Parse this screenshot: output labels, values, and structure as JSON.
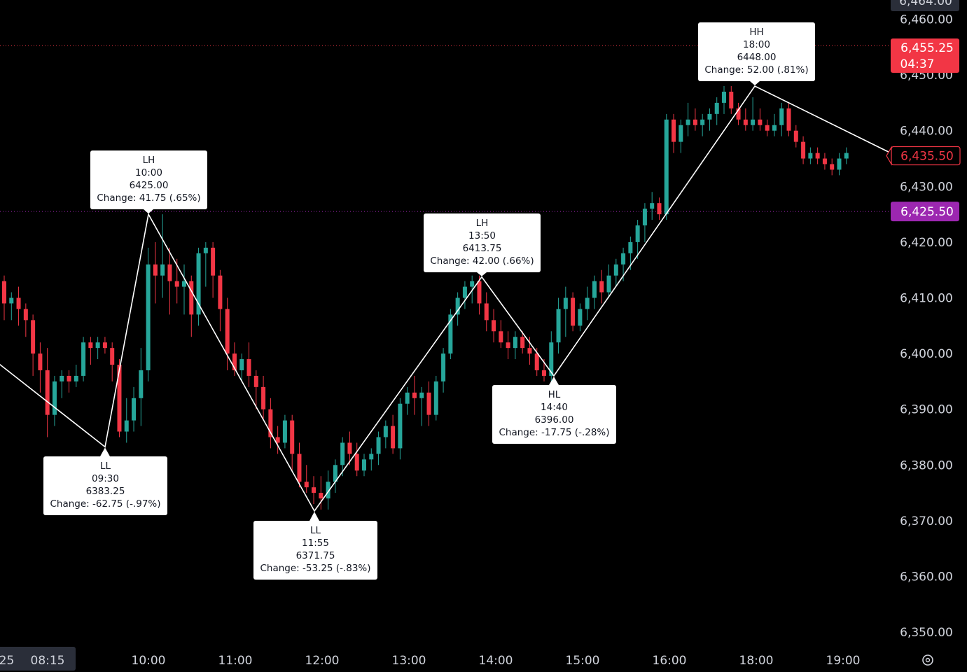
{
  "chart_data": {
    "type": "candlestick",
    "price_axis": {
      "ticks": [
        {
          "value": 6460,
          "label": "6,460.00"
        },
        {
          "value": 6450,
          "label": "6,450.00"
        },
        {
          "value": 6440,
          "label": "6,440.00"
        },
        {
          "value": 6430,
          "label": "6,430.00"
        },
        {
          "value": 6420,
          "label": "6,420.00"
        },
        {
          "value": 6410,
          "label": "6,410.00"
        },
        {
          "value": 6400,
          "label": "6,400.00"
        },
        {
          "value": 6390,
          "label": "6,390.00"
        },
        {
          "value": 6380,
          "label": "6,380.00"
        },
        {
          "value": 6370,
          "label": "6,370.00"
        },
        {
          "value": 6360,
          "label": "6,360.00"
        },
        {
          "value": 6350,
          "label": "6,350.00"
        }
      ],
      "partial_top_label": "6,464.00",
      "range": [
        6346,
        6464
      ]
    },
    "time_axis": {
      "current_label_prefix": "'25",
      "current_label": "08:15",
      "ticks": [
        "10:00",
        "11:00",
        "12:00",
        "13:00",
        "14:00",
        "15:00",
        "16:00",
        "18:00",
        "19:00"
      ]
    },
    "badges": {
      "last_price": {
        "value": 6455.25,
        "label": "6,455.25",
        "countdown": "04:37",
        "color": "#f23645"
      },
      "current_close": {
        "value": 6435.5,
        "label": "6,435.50",
        "color": "#f23645"
      },
      "level": {
        "value": 6425.5,
        "label": "6,425.50",
        "color": "#9c27b0"
      }
    },
    "colors": {
      "up": "#26a69a",
      "down": "#f23645",
      "zigzag": "#ffffff",
      "background": "#000000"
    },
    "swing_points": [
      {
        "type": "LL",
        "time": "09:30",
        "price": "6383.25",
        "change": "Change: -62.75 (-.97%)",
        "value": 6383.25
      },
      {
        "type": "LH",
        "time": "10:00",
        "price": "6425.00",
        "change": "Change: 41.75 (.65%)",
        "value": 6425.0
      },
      {
        "type": "LL",
        "time": "11:55",
        "price": "6371.75",
        "change": "Change: -53.25 (-.83%)",
        "value": 6371.75
      },
      {
        "type": "LH",
        "time": "13:50",
        "price": "6413.75",
        "change": "Change: 42.00 (.66%)",
        "value": 6413.75
      },
      {
        "type": "HL",
        "time": "14:40",
        "price": "6396.00",
        "change": "Change: -17.75 (-.28%)",
        "value": 6396.0
      },
      {
        "type": "HH",
        "time": "18:00",
        "price": "6448.00",
        "change": "Change: 52.00 (.81%)",
        "value": 6448.0
      }
    ],
    "candles": [
      [
        6413,
        6414,
        6406,
        6409
      ],
      [
        6409,
        6411,
        6406,
        6410
      ],
      [
        6410,
        6412,
        6405,
        6408
      ],
      [
        6408,
        6409,
        6403,
        6406
      ],
      [
        6406,
        6407,
        6396,
        6400
      ],
      [
        6400,
        6402,
        6393,
        6397
      ],
      [
        6397,
        6401,
        6385,
        6389
      ],
      [
        6389,
        6396,
        6387,
        6395
      ],
      [
        6395,
        6397,
        6392,
        6396
      ],
      [
        6396,
        6397,
        6393,
        6395
      ],
      [
        6395,
        6398,
        6394,
        6396
      ],
      [
        6396,
        6403,
        6395,
        6402
      ],
      [
        6402,
        6403,
        6398,
        6401
      ],
      [
        6401,
        6403,
        6399,
        6402
      ],
      [
        6402,
        6403,
        6400,
        6401
      ],
      [
        6401,
        6402,
        6395,
        6398
      ],
      [
        6398,
        6399,
        6385,
        6386
      ],
      [
        6386,
        6392,
        6384,
        6388
      ],
      [
        6388,
        6394,
        6386,
        6392
      ],
      [
        6392,
        6401,
        6387,
        6397
      ],
      [
        6397,
        6419,
        6395,
        6416
      ],
      [
        6416,
        6420,
        6409,
        6414
      ],
      [
        6414,
        6425,
        6410,
        6416
      ],
      [
        6416,
        6419,
        6407,
        6413
      ],
      [
        6413,
        6417,
        6409,
        6412
      ],
      [
        6412,
        6416,
        6407,
        6413
      ],
      [
        6413,
        6414,
        6403,
        6407
      ],
      [
        6407,
        6419,
        6405,
        6418
      ],
      [
        6418,
        6420,
        6412,
        6419
      ],
      [
        6419,
        6420,
        6410,
        6414
      ],
      [
        6414,
        6415,
        6404,
        6408
      ],
      [
        6408,
        6410,
        6397,
        6400
      ],
      [
        6400,
        6402,
        6396,
        6397
      ],
      [
        6397,
        6400,
        6395,
        6399
      ],
      [
        6399,
        6402,
        6394,
        6396
      ],
      [
        6396,
        6397,
        6390,
        6394
      ],
      [
        6394,
        6396,
        6388,
        6390
      ],
      [
        6390,
        6392,
        6383,
        6385
      ],
      [
        6385,
        6387,
        6382,
        6384
      ],
      [
        6384,
        6389,
        6383,
        6388
      ],
      [
        6388,
        6389,
        6379,
        6382
      ],
      [
        6382,
        6384,
        6376,
        6377
      ],
      [
        6377,
        6380,
        6375,
        6376
      ],
      [
        6376,
        6378,
        6373,
        6375
      ],
      [
        6375,
        6378,
        6372,
        6374
      ],
      [
        6374,
        6379,
        6372,
        6377
      ],
      [
        6377,
        6381,
        6375,
        6380
      ],
      [
        6380,
        6385,
        6378,
        6384
      ],
      [
        6384,
        6386,
        6380,
        6382
      ],
      [
        6382,
        6384,
        6378,
        6379
      ],
      [
        6379,
        6382,
        6378,
        6381
      ],
      [
        6381,
        6383,
        6379,
        6382
      ],
      [
        6382,
        6386,
        6380,
        6385
      ],
      [
        6385,
        6388,
        6383,
        6387
      ],
      [
        6387,
        6389,
        6382,
        6383
      ],
      [
        6383,
        6392,
        6381,
        6391
      ],
      [
        6391,
        6394,
        6389,
        6393
      ],
      [
        6393,
        6396,
        6389,
        6392
      ],
      [
        6392,
        6394,
        6387,
        6393
      ],
      [
        6393,
        6395,
        6387,
        6389
      ],
      [
        6389,
        6396,
        6388,
        6395
      ],
      [
        6395,
        6401,
        6393,
        6400
      ],
      [
        6400,
        6408,
        6399,
        6407
      ],
      [
        6407,
        6411,
        6405,
        6410
      ],
      [
        6410,
        6413,
        6408,
        6412
      ],
      [
        6412,
        6414,
        6409,
        6413
      ],
      [
        6413,
        6414,
        6407,
        6409
      ],
      [
        6409,
        6411,
        6404,
        6406
      ],
      [
        6406,
        6408,
        6402,
        6404
      ],
      [
        6404,
        6406,
        6401,
        6402
      ],
      [
        6402,
        6404,
        6399,
        6401
      ],
      [
        6401,
        6404,
        6399,
        6403
      ],
      [
        6403,
        6404,
        6400,
        6401
      ],
      [
        6401,
        6403,
        6398,
        6400
      ],
      [
        6400,
        6401,
        6396,
        6397
      ],
      [
        6397,
        6399,
        6395,
        6396
      ],
      [
        6396,
        6404,
        6395,
        6402
      ],
      [
        6402,
        6410,
        6400,
        6408
      ],
      [
        6408,
        6412,
        6403,
        6410
      ],
      [
        6410,
        6411,
        6404,
        6405
      ],
      [
        6405,
        6409,
        6404,
        6408
      ],
      [
        6408,
        6412,
        6406,
        6410
      ],
      [
        6410,
        6414,
        6408,
        6413
      ],
      [
        6413,
        6415,
        6409,
        6411
      ],
      [
        6411,
        6416,
        6410,
        6414
      ],
      [
        6414,
        6417,
        6412,
        6416
      ],
      [
        6416,
        6419,
        6413,
        6418
      ],
      [
        6418,
        6421,
        6415,
        6420
      ],
      [
        6420,
        6424,
        6417,
        6423
      ],
      [
        6423,
        6427,
        6420,
        6426
      ],
      [
        6426,
        6429,
        6424,
        6427
      ],
      [
        6427,
        6428,
        6424,
        6425
      ],
      [
        6425,
        6443,
        6424,
        6442
      ],
      [
        6442,
        6443,
        6436,
        6438
      ],
      [
        6438,
        6442,
        6436,
        6441
      ],
      [
        6441,
        6445,
        6439,
        6442
      ],
      [
        6442,
        6444,
        6440,
        6441
      ],
      [
        6441,
        6443,
        6439,
        6442
      ],
      [
        6442,
        6444,
        6440,
        6443
      ],
      [
        6443,
        6446,
        6441,
        6445
      ],
      [
        6445,
        6448,
        6443,
        6447
      ],
      [
        6447,
        6448,
        6443,
        6444
      ],
      [
        6444,
        6445,
        6441,
        6442
      ],
      [
        6442,
        6444,
        6440,
        6441
      ],
      [
        6441,
        6446,
        6440,
        6442
      ],
      [
        6442,
        6444,
        6440,
        6441
      ],
      [
        6441,
        6442,
        6439,
        6440
      ],
      [
        6440,
        6443,
        6439,
        6441
      ],
      [
        6441,
        6445,
        6439,
        6444
      ],
      [
        6444,
        6445,
        6439,
        6440
      ],
      [
        6440,
        6441,
        6437,
        6438
      ],
      [
        6438,
        6439,
        6434,
        6435
      ],
      [
        6435,
        6437,
        6434,
        6436
      ],
      [
        6436,
        6437,
        6434,
        6435
      ],
      [
        6435,
        6436,
        6433,
        6434
      ],
      [
        6434,
        6435,
        6432,
        6433
      ],
      [
        6433,
        6436,
        6432,
        6435
      ],
      [
        6435,
        6437,
        6434,
        6436
      ]
    ]
  }
}
